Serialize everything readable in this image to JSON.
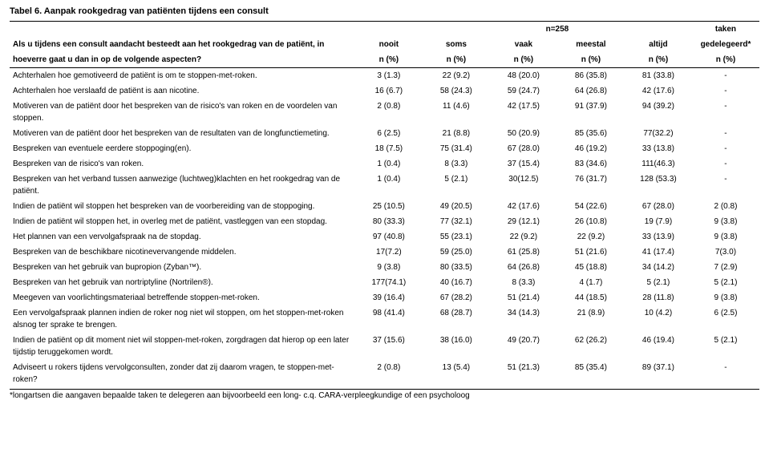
{
  "title": "Tabel 6. Aanpak rookgedrag van patiënten tijdens een consult",
  "n_label": "n=258",
  "taken_label": "taken",
  "q_line1": "Als u tijdens een consult aandacht besteedt aan het rookgedrag van de patiënt, in",
  "q_line2": "hoeverre gaat u dan in op de volgende aspecten?",
  "cols": [
    "nooit",
    "soms",
    "vaak",
    "meestal",
    "altijd",
    "gedelegeerd*"
  ],
  "unit": "n (%)",
  "rows": [
    {
      "label": "Achterhalen hoe gemotiveerd de patiënt is om te stoppen-met-roken.",
      "v": [
        "3 (1.3)",
        "22 (9.2)",
        "48 (20.0)",
        "86 (35.8)",
        "81 (33.8)",
        "-"
      ]
    },
    {
      "label": "Achterhalen hoe verslaafd de patiënt is aan nicotine.",
      "v": [
        "16 (6.7)",
        "58 (24.3)",
        "59 (24.7)",
        "64 (26.8)",
        "42 (17.6)",
        "-"
      ]
    },
    {
      "label": "Motiveren van de patiënt door het bespreken van de risico's van roken en de voordelen van stoppen.",
      "v": [
        "2 (0.8)",
        "11 (4.6)",
        "42 (17.5)",
        "91 (37.9)",
        "94 (39.2)",
        "-"
      ]
    },
    {
      "label": "Motiveren van de patiënt door het bespreken van de resultaten van de longfunctiemeting.",
      "v": [
        "6 (2.5)",
        "21 (8.8)",
        "50 (20.9)",
        "85 (35.6)",
        "77(32.2)",
        "-"
      ]
    },
    {
      "label": "Bespreken van eventuele eerdere stoppoging(en).",
      "v": [
        "18 (7.5)",
        "75 (31.4)",
        "67 (28.0)",
        "46 (19.2)",
        "33 (13.8)",
        "-"
      ]
    },
    {
      "label": "Bespreken van de risico's van roken.",
      "v": [
        "1 (0.4)",
        "8 (3.3)",
        "37 (15.4)",
        "83 (34.6)",
        "111(46.3)",
        "-"
      ]
    },
    {
      "label": "Bespreken van het verband tussen aanwezige (luchtweg)klachten en het rookgedrag van de patiënt.",
      "v": [
        "1 (0.4)",
        "5 (2.1)",
        "30(12.5)",
        "76 (31.7)",
        "128 (53.3)",
        "-"
      ]
    },
    {
      "label": "Indien de patiënt wil stoppen het bespreken van de voorbereiding van de stoppoging.",
      "v": [
        "25 (10.5)",
        "49 (20.5)",
        "42 (17.6)",
        "54 (22.6)",
        "67 (28.0)",
        "2 (0.8)"
      ]
    },
    {
      "label": "Indien de patiënt wil stoppen het, in overleg met de patiënt, vastleggen van een stopdag.",
      "v": [
        "80 (33.3)",
        "77 (32.1)",
        "29 (12.1)",
        "26 (10.8)",
        "19 (7.9)",
        "9 (3.8)"
      ]
    },
    {
      "label": "Het plannen van een vervolgafspraak na de stopdag.",
      "v": [
        "97 (40.8)",
        "55 (23.1)",
        "22 (9.2)",
        "22 (9.2)",
        "33 (13.9)",
        "9 (3.8)"
      ]
    },
    {
      "label": "Bespreken van de beschikbare nicotinevervangende middelen.",
      "v": [
        "17(7.2)",
        "59 (25.0)",
        "61 (25.8)",
        "51 (21.6)",
        "41 (17.4)",
        "7(3.0)"
      ]
    },
    {
      "label": "Bespreken van het gebruik van bupropion (Zyban™).",
      "v": [
        "9 (3.8)",
        "80 (33.5)",
        "64 (26.8)",
        "45 (18.8)",
        "34 (14.2)",
        "7 (2.9)"
      ]
    },
    {
      "label": "Bespreken van het gebruik van nortriptyline (Nortrilen®).",
      "v": [
        "177(74.1)",
        "40 (16.7)",
        "8 (3.3)",
        "4 (1.7)",
        "5 (2.1)",
        "5 (2.1)"
      ]
    },
    {
      "label": "Meegeven van voorlichtingsmateriaal betreffende stoppen-met-roken.",
      "v": [
        "39 (16.4)",
        "67 (28.2)",
        "51 (21.4)",
        "44 (18.5)",
        "28 (11.8)",
        "9 (3.8)"
      ]
    },
    {
      "label": "Een vervolgafspraak plannen indien de roker nog niet wil stoppen, om het stoppen-met-roken alsnog ter sprake te brengen.",
      "v": [
        "98 (41.4)",
        "68 (28.7)",
        "34 (14.3)",
        "21 (8.9)",
        "10 (4.2)",
        "6 (2.5)"
      ]
    },
    {
      "label": "Indien de patiënt op dit moment niet wil stoppen-met-roken, zorgdragen dat hierop op een later tijdstip teruggekomen wordt.",
      "v": [
        "37 (15.6)",
        "38 (16.0)",
        "49 (20.7)",
        "62 (26.2)",
        "46 (19.4)",
        "5 (2.1)"
      ]
    },
    {
      "label": "Adviseert u rokers tijdens vervolgconsulten, zonder dat zij daarom vragen, te stoppen-met-roken?",
      "v": [
        "2 (0.8)",
        "13 (5.4)",
        "51 (21.3)",
        "85 (35.4)",
        "89 (37.1)",
        "-"
      ]
    }
  ],
  "footnote": "*longartsen die aangaven bepaalde taken te delegeren aan bijvoorbeeld een long- c.q. CARA-verpleegkundige of een psycholoog"
}
